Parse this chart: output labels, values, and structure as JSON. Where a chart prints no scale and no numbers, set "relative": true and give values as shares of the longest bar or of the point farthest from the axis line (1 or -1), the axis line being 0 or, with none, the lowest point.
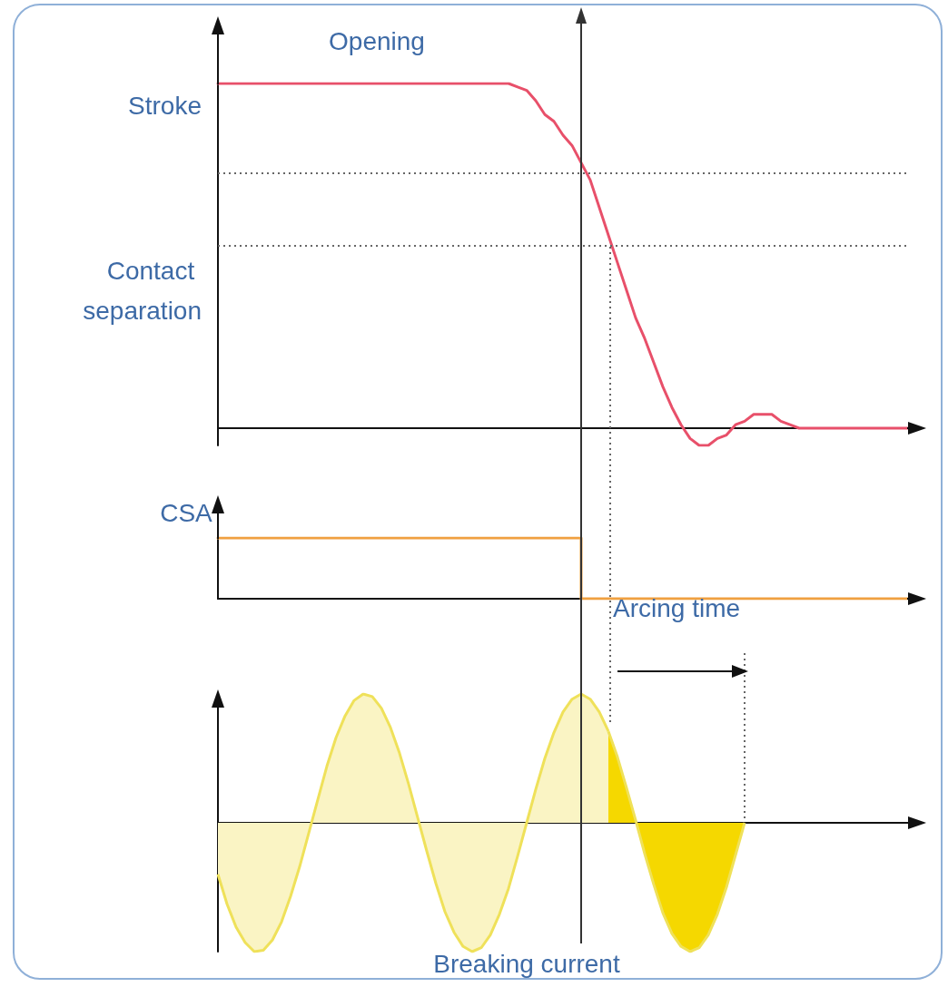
{
  "chart_data": [
    {
      "type": "line",
      "title": "Opening",
      "ylabel": "Stroke",
      "annotations": [
        "Contact separation"
      ],
      "relative": true,
      "marker": "none",
      "grid": false,
      "categories": [
        null,
        null,
        null,
        null,
        null,
        null,
        null,
        null,
        null,
        null,
        null,
        null,
        null,
        null,
        null,
        null,
        null,
        null,
        null,
        null,
        null,
        null,
        null,
        null,
        null,
        null,
        null,
        null,
        null,
        null,
        null,
        null,
        null,
        null,
        null,
        null,
        null,
        null,
        null,
        null,
        null,
        null,
        null,
        null,
        null,
        null,
        null,
        null,
        null,
        null,
        null,
        null,
        null,
        null,
        null,
        null,
        null,
        null,
        null,
        null,
        null,
        null,
        null,
        null,
        null,
        null,
        null,
        null,
        null,
        null,
        null,
        null,
        null,
        null,
        null,
        null,
        null
      ],
      "series": [
        {
          "color": "#e8506a",
          "values": [
            1,
            1,
            1,
            1,
            1,
            1,
            1,
            1,
            1,
            1,
            1,
            1,
            1,
            1,
            1,
            1,
            1,
            1,
            1,
            1,
            1,
            1,
            1,
            1,
            1,
            1,
            1,
            1,
            1,
            1,
            1,
            1,
            1,
            0.99,
            0.98,
            0.95,
            0.91,
            0.89,
            0.85,
            0.82,
            0.77,
            0.72,
            0.64,
            0.56,
            0.48,
            0.4,
            0.32,
            0.26,
            0.19,
            0.12,
            0.06,
            0.01,
            -0.03,
            -0.05,
            -0.05,
            -0.03,
            -0.02,
            0.01,
            0.02,
            0.04,
            0.04,
            0.04,
            0.02,
            0.01,
            0,
            0,
            0,
            0,
            0,
            0,
            0,
            0,
            0,
            0,
            0,
            0,
            0
          ]
        }
      ],
      "ref_lines": [
        {
          "axis": "y",
          "value": 0.74,
          "line_style": "dotted",
          "color": "#666666"
        },
        {
          "axis": "y",
          "value": 0.53,
          "line_style": "dotted",
          "color": "#666666"
        }
      ]
    },
    {
      "type": "step",
      "ylabel": "CSA",
      "relative": true,
      "marker": "none",
      "grid": false,
      "categories": [
        null,
        null,
        null,
        null,
        null,
        null,
        null,
        null,
        null,
        null,
        null,
        null,
        null,
        null,
        null,
        null,
        null,
        null,
        null,
        null,
        null,
        null,
        null,
        null,
        null,
        null,
        null,
        null,
        null,
        null,
        null,
        null,
        null,
        null,
        null,
        null,
        null,
        null,
        null,
        null,
        null,
        null,
        null,
        null,
        null,
        null,
        null,
        null,
        null,
        null,
        null,
        null,
        null,
        null,
        null,
        null,
        null,
        null,
        null,
        null,
        null,
        null,
        null,
        null,
        null,
        null,
        null,
        null,
        null,
        null,
        null,
        null,
        null,
        null,
        null,
        null,
        null
      ],
      "series": [
        {
          "color": "#f0a040",
          "values": [
            1,
            1,
            1,
            1,
            1,
            1,
            1,
            1,
            1,
            1,
            1,
            1,
            1,
            1,
            1,
            1,
            1,
            1,
            1,
            1,
            1,
            1,
            1,
            1,
            1,
            1,
            1,
            1,
            1,
            1,
            1,
            1,
            1,
            1,
            1,
            1,
            1,
            1,
            1,
            1,
            1,
            0,
            0,
            0,
            0,
            0,
            0,
            0,
            0,
            0,
            0,
            0,
            0,
            0,
            0,
            0,
            0,
            0,
            0,
            0,
            0,
            0,
            0,
            0,
            0,
            0,
            0,
            0,
            0,
            0,
            0,
            0,
            0,
            0,
            0,
            0,
            0
          ]
        }
      ]
    },
    {
      "type": "area",
      "xlabel": "Breaking current",
      "annotations": [
        "Arcing time"
      ],
      "relative": true,
      "marker": "none",
      "grid": false,
      "categories": [
        null,
        null,
        null,
        null,
        null,
        null,
        null,
        null,
        null,
        null,
        null,
        null,
        null,
        null,
        null,
        null,
        null,
        null,
        null,
        null,
        null,
        null,
        null,
        null,
        null,
        null,
        null,
        null,
        null,
        null,
        null,
        null,
        null,
        null,
        null,
        null,
        null,
        null,
        null,
        null,
        null,
        null,
        null,
        null,
        null,
        null,
        null,
        null,
        null,
        null,
        null,
        null,
        null,
        null,
        null,
        null,
        null,
        null,
        null,
        null,
        null,
        null,
        null,
        null,
        null,
        null,
        null,
        null,
        null,
        null,
        null,
        null,
        null,
        null,
        null,
        null,
        null
      ],
      "series": [
        {
          "color": "#faf4c4",
          "values": [
            -0.4,
            -0.63,
            -0.81,
            -0.93,
            -1.0,
            -0.99,
            -0.91,
            -0.77,
            -0.57,
            -0.34,
            -0.08,
            0.18,
            0.44,
            0.66,
            0.83,
            0.95,
            1.0,
            0.98,
            0.89,
            0.74,
            0.54,
            0.3,
            0.04,
            -0.22,
            -0.47,
            -0.69,
            -0.85,
            -0.96,
            -1.0,
            -0.97,
            -0.87,
            -0.71,
            -0.51,
            -0.26,
            0.0,
            0.26,
            0.5,
            0.7,
            0.86,
            0.96,
            1.0,
            0.96,
            0.86,
            0.71,
            null,
            null,
            null,
            null,
            null,
            null,
            null,
            null,
            null,
            null,
            null,
            null,
            null,
            null,
            null,
            null,
            null,
            null,
            null,
            null,
            null,
            null,
            null,
            null,
            null,
            null,
            null,
            null,
            null,
            null,
            null,
            null,
            null
          ]
        },
        {
          "color": "#f5d800",
          "values": [
            null,
            null,
            null,
            null,
            null,
            null,
            null,
            null,
            null,
            null,
            null,
            null,
            null,
            null,
            null,
            null,
            null,
            null,
            null,
            null,
            null,
            null,
            null,
            null,
            null,
            null,
            null,
            null,
            null,
            null,
            null,
            null,
            null,
            null,
            null,
            null,
            null,
            null,
            null,
            null,
            null,
            null,
            null,
            0.71,
            0.51,
            0.27,
            0.02,
            -0.24,
            -0.48,
            -0.7,
            -0.86,
            -0.96,
            -1.0,
            -0.97,
            -0.87,
            -0.71,
            -0.5,
            -0.25,
            0,
            null,
            null,
            null,
            null,
            null,
            null,
            null,
            null,
            null,
            null,
            null,
            null,
            null,
            null,
            null,
            null,
            null,
            null
          ]
        }
      ]
    }
  ]
}
